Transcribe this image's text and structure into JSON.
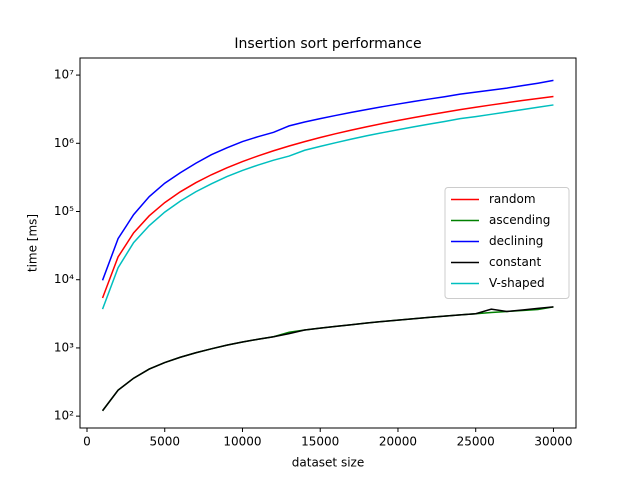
{
  "chart_data": {
    "type": "line",
    "title": "Insertion sort performance",
    "x_label": "dataset size",
    "y_label": "time [ms]",
    "x": [
      1000,
      2000,
      3000,
      4000,
      5000,
      6000,
      7000,
      8000,
      9000,
      10000,
      11000,
      12000,
      13000,
      14000,
      15000,
      16000,
      17000,
      18000,
      19000,
      20000,
      21000,
      22000,
      23000,
      24000,
      25000,
      26000,
      27000,
      28000,
      29000,
      30000
    ],
    "series": [
      {
        "name": "random",
        "color": "#ff0000",
        "values": [
          5400,
          21600,
          48600,
          86400,
          135000,
          194400,
          264600,
          345600,
          437400,
          540000,
          653400,
          777600,
          912600,
          1058400,
          1215000,
          1382400,
          1560600,
          1749600,
          1949400,
          2160000,
          2381400,
          2613600,
          2856600,
          3110400,
          3375000,
          3650400,
          3936600,
          4233600,
          4541400,
          4860000
        ]
      },
      {
        "name": "ascending",
        "color": "#008000",
        "values": [
          120,
          240,
          360,
          490,
          610,
          730,
          850,
          970,
          1100,
          1220,
          1340,
          1460,
          1700,
          1830,
          1950,
          2070,
          2190,
          2320,
          2440,
          2560,
          2680,
          2810,
          2930,
          3050,
          3170,
          3300,
          3420,
          3540,
          3660,
          3990
        ]
      },
      {
        "name": "declining",
        "color": "#0000ff",
        "values": [
          9800,
          40000,
          90000,
          165000,
          260000,
          370000,
          510000,
          680000,
          860000,
          1060000,
          1250000,
          1450000,
          1800000,
          2050000,
          2300000,
          2560000,
          2840000,
          3130000,
          3440000,
          3760000,
          4100000,
          4450000,
          4820000,
          5250000,
          5620000,
          6020000,
          6450000,
          7000000,
          7600000,
          8350000
        ]
      },
      {
        "name": "constant",
        "color": "#000000",
        "values": [
          120,
          240,
          360,
          490,
          610,
          730,
          850,
          970,
          1100,
          1220,
          1340,
          1460,
          1620,
          1830,
          1950,
          2070,
          2190,
          2320,
          2440,
          2560,
          2680,
          2810,
          2930,
          3050,
          3170,
          3700,
          3420,
          3600,
          3800,
          3990
        ]
      },
      {
        "name": "V-shaped",
        "color": "#00bfbf",
        "values": [
          3700,
          15000,
          35000,
          62000,
          98000,
          142000,
          195000,
          255000,
          325000,
          400000,
          480000,
          565000,
          650000,
          790000,
          900000,
          1020000,
          1150000,
          1290000,
          1430000,
          1580000,
          1740000,
          1910000,
          2090000,
          2300000,
          2460000,
          2660000,
          2880000,
          3120000,
          3380000,
          3650000
        ]
      }
    ],
    "xlim": [
      -450,
      31450
    ],
    "ylim": [
      67,
      17800000
    ],
    "log_y": true,
    "xticks": [
      0,
      5000,
      10000,
      15000,
      20000,
      25000,
      30000
    ],
    "yticks": [
      {
        "value": 100,
        "label": "10²"
      },
      {
        "value": 1000,
        "label": "10³"
      },
      {
        "value": 10000,
        "label": "10⁴"
      },
      {
        "value": 100000,
        "label": "10⁵"
      },
      {
        "value": 1000000,
        "label": "10⁶"
      },
      {
        "value": 10000000,
        "label": "10⁷"
      }
    ],
    "legend": "center right"
  }
}
